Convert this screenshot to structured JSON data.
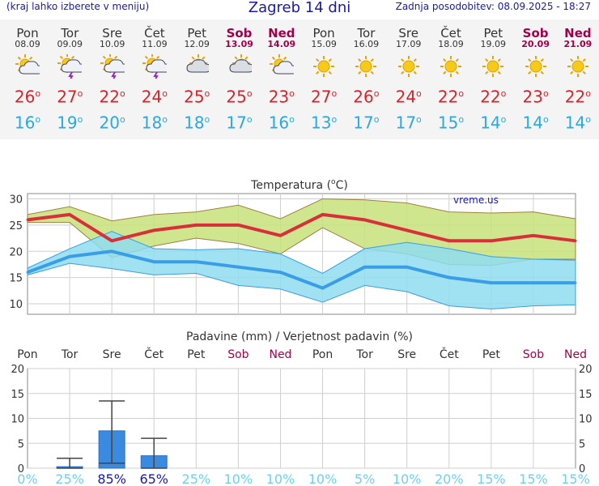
{
  "header": {
    "note": "(kraj lahko izberete v meniju)",
    "title": "Zagreb 14 dni",
    "updated": "Zadnja posodobitev: 08.09.2025 - 18:27"
  },
  "days": [
    {
      "name": "Pon",
      "date": "08.09",
      "weekend": false,
      "icon": "sun-cloud-icon",
      "tmax": "26",
      "tmin": "16"
    },
    {
      "name": "Tor",
      "date": "09.09",
      "weekend": false,
      "icon": "sun-cloud-storm-icon",
      "tmax": "27",
      "tmin": "19"
    },
    {
      "name": "Sre",
      "date": "10.09",
      "weekend": false,
      "icon": "sun-cloud-storm-icon",
      "tmax": "22",
      "tmin": "20"
    },
    {
      "name": "Čet",
      "date": "11.09",
      "weekend": false,
      "icon": "sun-cloud-storm-icon",
      "tmax": "24",
      "tmin": "18"
    },
    {
      "name": "Pet",
      "date": "12.09",
      "weekend": false,
      "icon": "cloud-sun-icon",
      "tmax": "25",
      "tmin": "18"
    },
    {
      "name": "Sob",
      "date": "13.09",
      "weekend": true,
      "icon": "cloud-sun-icon",
      "tmax": "25",
      "tmin": "17"
    },
    {
      "name": "Ned",
      "date": "14.09",
      "weekend": true,
      "icon": "sun-cloud-icon",
      "tmax": "23",
      "tmin": "16"
    },
    {
      "name": "Pon",
      "date": "15.09",
      "weekend": false,
      "icon": "sun-icon",
      "tmax": "27",
      "tmin": "13"
    },
    {
      "name": "Tor",
      "date": "16.09",
      "weekend": false,
      "icon": "sun-icon",
      "tmax": "26",
      "tmin": "17"
    },
    {
      "name": "Sre",
      "date": "17.09",
      "weekend": false,
      "icon": "sun-icon",
      "tmax": "24",
      "tmin": "17"
    },
    {
      "name": "Čet",
      "date": "18.09",
      "weekend": false,
      "icon": "sun-icon",
      "tmax": "22",
      "tmin": "15"
    },
    {
      "name": "Pet",
      "date": "19.09",
      "weekend": false,
      "icon": "sun-icon",
      "tmax": "22",
      "tmin": "14"
    },
    {
      "name": "Sob",
      "date": "20.09",
      "weekend": true,
      "icon": "sun-icon",
      "tmax": "23",
      "tmin": "14"
    },
    {
      "name": "Ned",
      "date": "21.09",
      "weekend": true,
      "icon": "sun-icon",
      "tmax": "22",
      "tmin": "14"
    }
  ],
  "degree_symbol": "o",
  "colors": {
    "tmax": "#d8232a",
    "tmin": "#29a8e6",
    "weekend": "#a0004a",
    "header": "#1a1aa6",
    "bar": "#3a8be0",
    "band_max": "#c8e27a",
    "band_min": "#8fdcf0"
  },
  "chart_data": [
    {
      "type": "line",
      "title": "Temperatura (",
      "title_sup": "o",
      "title_unit": "C)",
      "watermark": "vreme.us",
      "categories": [
        "Pon",
        "Tor",
        "Sre",
        "Čet",
        "Pet",
        "Sob",
        "Ned",
        "Pon",
        "Tor",
        "Sre",
        "Čet",
        "Pet",
        "Sob",
        "Ned"
      ],
      "ylim": [
        8,
        31
      ],
      "yticks": [
        10,
        15,
        20,
        25,
        30
      ],
      "grid": true,
      "series": [
        {
          "role": "max",
          "values": [
            26,
            27,
            22,
            24,
            25,
            25,
            23,
            27,
            26,
            24,
            22,
            22,
            23,
            22
          ]
        },
        {
          "role": "max_upper",
          "values": [
            27,
            28.5,
            25.8,
            27,
            27.5,
            28.8,
            26.2,
            30,
            29.8,
            29.2,
            27.5,
            27.3,
            27.5,
            26.2
          ]
        },
        {
          "role": "max_lower",
          "values": [
            25.5,
            25.5,
            18.8,
            21,
            22.5,
            21.5,
            19.5,
            24.5,
            20.5,
            19.5,
            17.5,
            17.3,
            18.5,
            18.5
          ]
        },
        {
          "role": "min",
          "values": [
            16,
            19,
            20,
            18,
            18,
            17,
            16,
            13,
            17,
            17,
            15,
            14,
            14,
            14
          ]
        },
        {
          "role": "min_upper",
          "values": [
            16.8,
            20.5,
            23.8,
            20.5,
            20.3,
            20.5,
            19.5,
            15.8,
            20.5,
            21.7,
            20.5,
            19,
            18.5,
            18.3
          ]
        },
        {
          "role": "min_lower",
          "values": [
            15.5,
            17.7,
            16.7,
            15.5,
            15.8,
            13.5,
            12.8,
            10.3,
            13.5,
            12.3,
            9.6,
            9,
            9.6,
            9.8
          ]
        }
      ]
    },
    {
      "type": "bar",
      "title": "Padavine (mm) / Verjetnost padavin (%)",
      "categories": [
        "Pon",
        "Tor",
        "Sre",
        "Čet",
        "Pet",
        "Sob",
        "Ned",
        "Pon",
        "Tor",
        "Sre",
        "Čet",
        "Pet",
        "Sob",
        "Ned"
      ],
      "weekend": [
        false,
        false,
        false,
        false,
        false,
        true,
        true,
        false,
        false,
        false,
        false,
        false,
        true,
        true
      ],
      "ylim": [
        0,
        20
      ],
      "yticks": [
        0,
        5,
        10,
        15,
        20
      ],
      "values": [
        0,
        0.3,
        7.5,
        2.5,
        0,
        0,
        0,
        0,
        0,
        0,
        0,
        0,
        0,
        0
      ],
      "error_low": [
        null,
        0,
        1,
        0,
        null,
        null,
        null,
        null,
        null,
        null,
        null,
        null,
        null,
        null
      ],
      "error_high": [
        null,
        2,
        13.5,
        6,
        null,
        null,
        null,
        null,
        null,
        null,
        null,
        null,
        null,
        null
      ],
      "probability": [
        "0%",
        "25%",
        "85%",
        "65%",
        "25%",
        "10%",
        "10%",
        "10%",
        "5%",
        "10%",
        "20%",
        "15%",
        "15%",
        "15%"
      ],
      "probability_strong": [
        false,
        false,
        true,
        true,
        false,
        false,
        false,
        false,
        false,
        false,
        false,
        false,
        false,
        false
      ]
    }
  ]
}
